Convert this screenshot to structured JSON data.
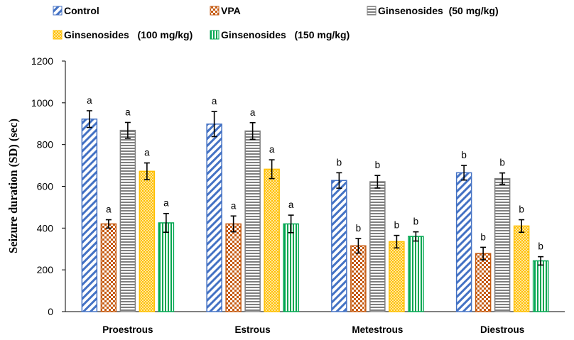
{
  "chart_data": {
    "type": "bar",
    "title": "",
    "xlabel": "",
    "ylabel": "Seizure duration (SD) (sec)",
    "ylim": [
      0,
      1200
    ],
    "yticks": [
      0,
      200,
      400,
      600,
      800,
      1000,
      1200
    ],
    "grid": false,
    "legend_position": "top",
    "categories": [
      "Proestrous",
      "Estrous",
      "Metestrous",
      "Diestrous"
    ],
    "series": [
      {
        "name": "Control",
        "pattern": "diagonal-stripes",
        "color": "#4472C4",
        "values": [
          922,
          898,
          628,
          665
        ],
        "errors": [
          40,
          60,
          37,
          35
        ],
        "labels": [
          "a",
          "a",
          "b",
          "b"
        ]
      },
      {
        "name": "VPA",
        "pattern": "checkerboard",
        "color": "#C55A11",
        "values": [
          420,
          420,
          315,
          278
        ],
        "errors": [
          20,
          38,
          35,
          30
        ],
        "labels": [
          "a",
          "a",
          "b",
          "b"
        ]
      },
      {
        "name": "Ginsenosides  (50 mg/kg)",
        "pattern": "horizontal-stripes",
        "color": "#7F7F7F",
        "values": [
          868,
          865,
          622,
          637
        ],
        "errors": [
          38,
          40,
          30,
          27
        ],
        "labels": [
          "a",
          "a",
          "b",
          "b"
        ]
      },
      {
        "name": "Ginsenosides   (100 mg/kg)",
        "pattern": "dots",
        "color": "#FFC000",
        "values": [
          672,
          682,
          335,
          410
        ],
        "errors": [
          40,
          45,
          30,
          30
        ],
        "labels": [
          "a",
          "a",
          "b",
          "b"
        ]
      },
      {
        "name": "Ginsenosides   (150 mg/kg)",
        "pattern": "vertical-stripes",
        "color": "#00A651",
        "values": [
          425,
          420,
          360,
          243
        ],
        "errors": [
          45,
          42,
          22,
          20
        ],
        "labels": [
          "a",
          "a",
          "b",
          "b"
        ]
      }
    ]
  }
}
